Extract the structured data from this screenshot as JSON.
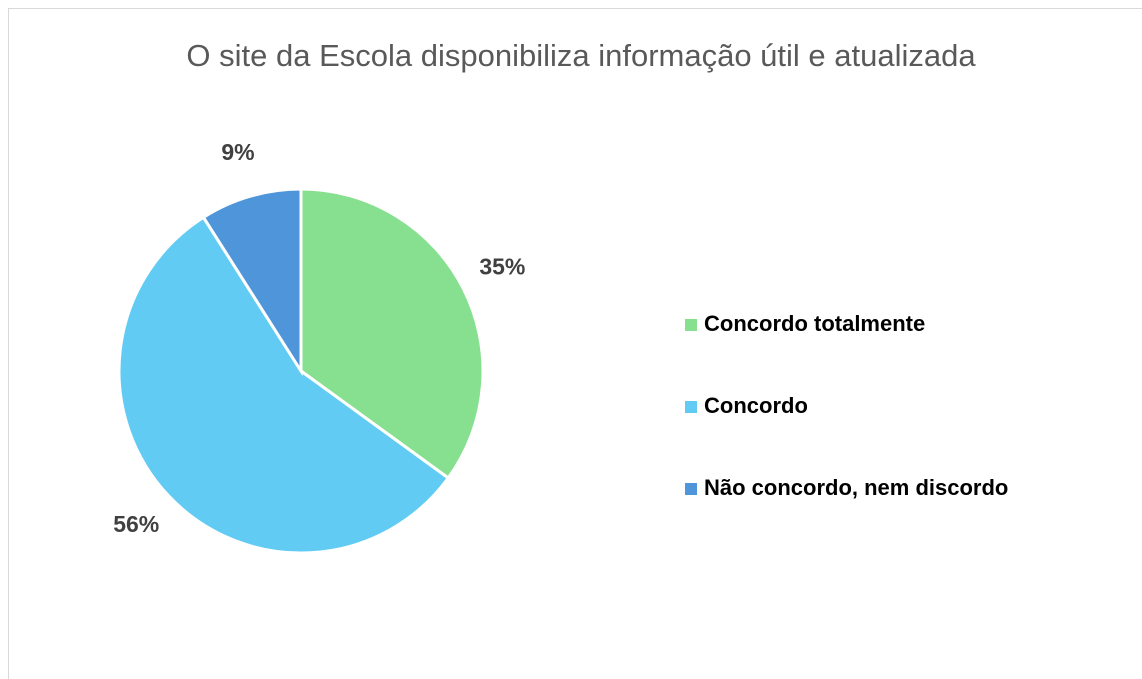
{
  "chart_data": {
    "type": "pie",
    "title": "O site da Escola disponibiliza informação útil e atualizada",
    "categories": [
      "Concordo totalmente",
      "Concordo",
      "Não concordo, nem discordo"
    ],
    "values": [
      35,
      56,
      9
    ],
    "value_labels": [
      "35%",
      "56%",
      "9%"
    ],
    "colors": [
      "#86e08f",
      "#61cbf3",
      "#4e95d9"
    ],
    "legend": "right"
  }
}
